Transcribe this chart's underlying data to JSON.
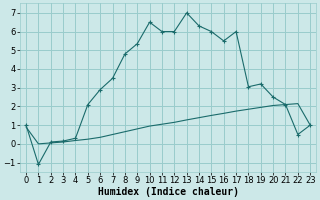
{
  "xlabel": "Humidex (Indice chaleur)",
  "bg_color": "#cce8e8",
  "grid_color": "#99cccc",
  "line_color": "#1a6b6b",
  "xlim": [
    -0.5,
    23.5
  ],
  "ylim": [
    -1.5,
    7.5
  ],
  "xticks": [
    0,
    1,
    2,
    3,
    4,
    5,
    6,
    7,
    8,
    9,
    10,
    11,
    12,
    13,
    14,
    15,
    16,
    17,
    18,
    19,
    20,
    21,
    22,
    23
  ],
  "yticks": [
    -1,
    0,
    1,
    2,
    3,
    4,
    5,
    6,
    7
  ],
  "series1_x": [
    0,
    1,
    2,
    3,
    4,
    5,
    6,
    7,
    8,
    9,
    10,
    11,
    12,
    13,
    14,
    15,
    16,
    17,
    18,
    19,
    20,
    21,
    22,
    23
  ],
  "series1_y": [
    1.0,
    -1.1,
    0.1,
    0.15,
    0.3,
    2.1,
    2.9,
    3.5,
    4.8,
    5.35,
    6.5,
    6.0,
    6.0,
    7.0,
    6.3,
    6.0,
    5.5,
    6.0,
    3.05,
    3.2,
    2.5,
    2.1,
    0.5,
    1.0
  ],
  "series2_x": [
    0,
    1,
    2,
    3,
    4,
    5,
    6,
    7,
    8,
    9,
    10,
    11,
    12,
    13,
    14,
    15,
    16,
    17,
    18,
    19,
    20,
    21,
    22,
    23
  ],
  "series2_y": [
    0.9,
    0.0,
    0.05,
    0.1,
    0.18,
    0.25,
    0.35,
    0.5,
    0.65,
    0.8,
    0.95,
    1.05,
    1.15,
    1.28,
    1.4,
    1.52,
    1.63,
    1.75,
    1.85,
    1.95,
    2.05,
    2.1,
    2.15,
    1.0
  ],
  "xlabel_fontsize": 7,
  "tick_fontsize": 6
}
